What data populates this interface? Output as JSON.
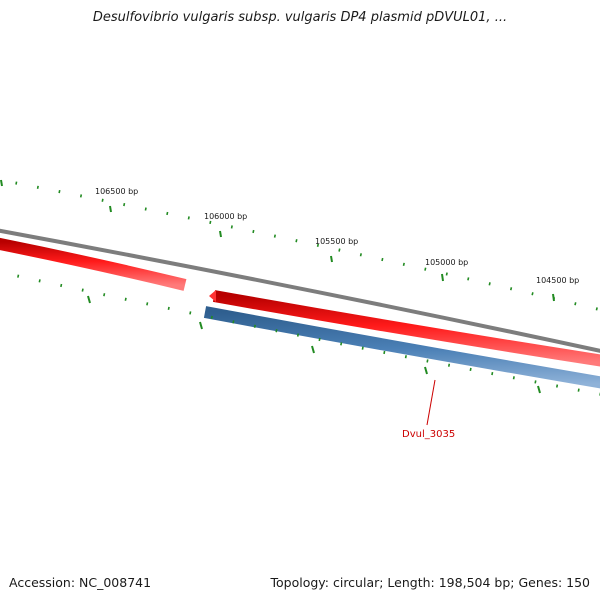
{
  "title": "Desulfovibrio vulgaris subsp. vulgaris DP4 plasmid pDVUL01, ...",
  "footer": {
    "accession": "Accession: NC_008741",
    "stats": "Topology: circular; Length: 198,504 bp; Genes: 150"
  },
  "ruler_labels": [
    "106500 bp",
    "106000 bp",
    "105500 bp",
    "105000 bp",
    "104500 bp"
  ],
  "callout": "Dvul_3035",
  "colors": {
    "backbone": "#8a8a8a",
    "forward_feature": "#ff0000",
    "reverse_feature": "#4a7fb5",
    "tick": "#228b22",
    "callout": "#cc0000"
  }
}
